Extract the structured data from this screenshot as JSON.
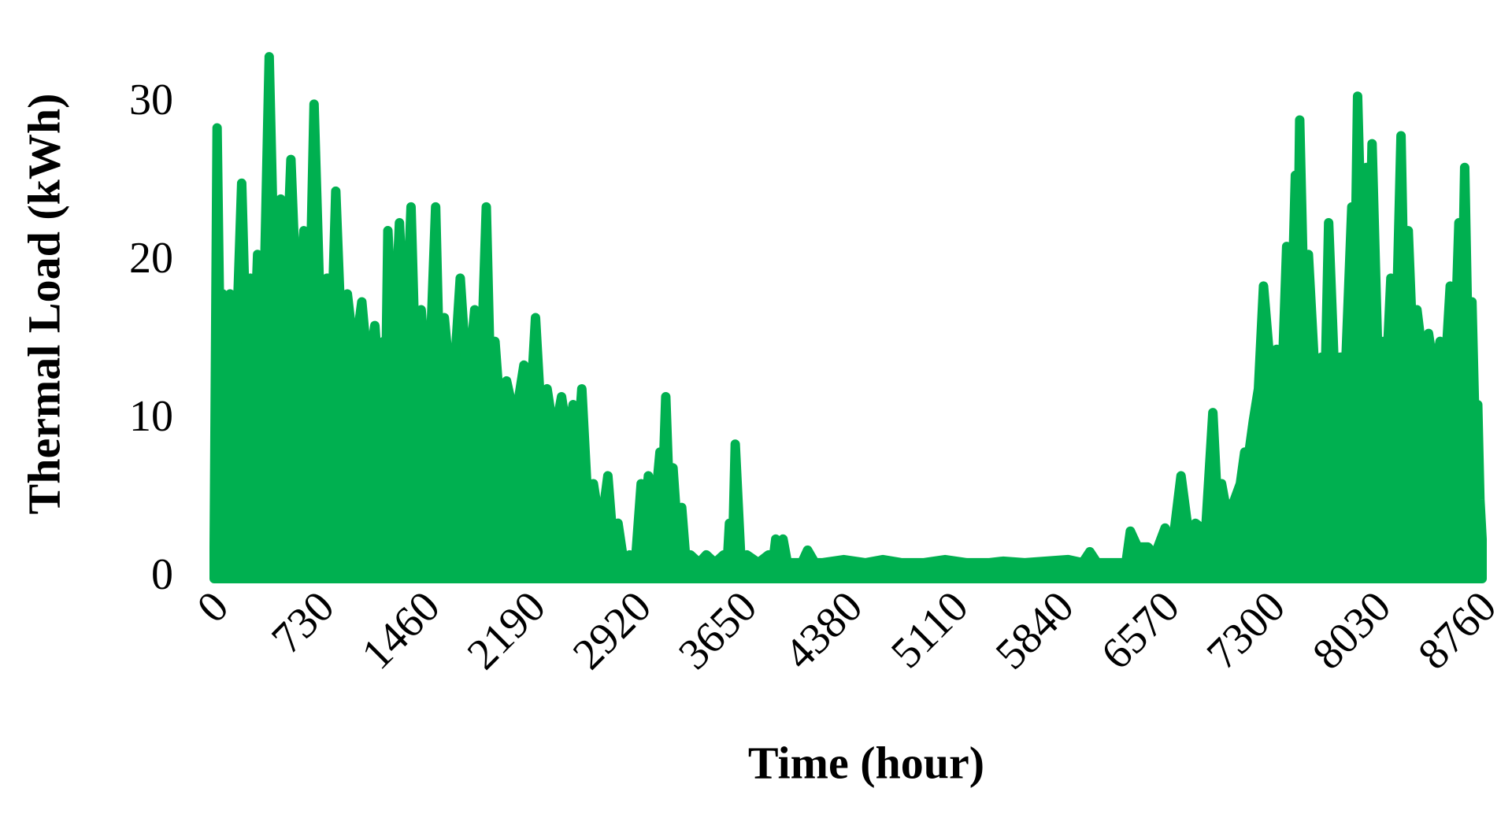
{
  "chart_data": {
    "type": "area",
    "xlabel": "Time (hour)",
    "ylabel": "Thermal Load (kWh)",
    "color": "#00b050",
    "xlim": [
      0,
      8760
    ],
    "xticks": [
      0,
      730,
      1460,
      2190,
      2920,
      3650,
      4380,
      5110,
      5840,
      6570,
      7300,
      8030,
      8760
    ],
    "ylim": [
      0,
      34
    ],
    "yticks": [
      0,
      10,
      20,
      30
    ],
    "grid": false,
    "x": [
      0,
      20,
      40,
      60,
      85,
      110,
      150,
      190,
      220,
      250,
      275,
      300,
      340,
      380,
      420,
      460,
      495,
      530,
      575,
      620,
      655,
      690,
      735,
      780,
      810,
      840,
      880,
      920,
      970,
      1020,
      1065,
      1110,
      1140,
      1170,
      1185,
      1200,
      1240,
      1280,
      1320,
      1360,
      1395,
      1430,
      1480,
      1530,
      1560,
      1590,
      1645,
      1700,
      1750,
      1800,
      1840,
      1880,
      1910,
      1940,
      1980,
      2020,
      2080,
      2140,
      2180,
      2220,
      2260,
      2300,
      2350,
      2400,
      2440,
      2480,
      2510,
      2540,
      2580,
      2620,
      2670,
      2720,
      2750,
      2790,
      2830,
      2870,
      2910,
      2950,
      2975,
      3000,
      3040,
      3080,
      3100,
      3120,
      3145,
      3170,
      3200,
      3230,
      3260,
      3290,
      3350,
      3400,
      3460,
      3520,
      3545,
      3560,
      3580,
      3600,
      3640,
      3680,
      3760,
      3830,
      3860,
      3880,
      3905,
      3930,
      3960,
      4000,
      4060,
      4100,
      4150,
      4200,
      4350,
      4500,
      4620,
      4750,
      4900,
      5050,
      5200,
      5350,
      5450,
      5600,
      5750,
      5900,
      6000,
      6050,
      6100,
      6200,
      6300,
      6330,
      6380,
      6450,
      6500,
      6570,
      6620,
      6680,
      6730,
      6780,
      6850,
      6900,
      6930,
      6960,
      7000,
      7050,
      7090,
      7120,
      7150,
      7180,
      7215,
      7250,
      7300,
      7340,
      7380,
      7410,
      7440,
      7470,
      7485,
      7500,
      7530,
      7560,
      7610,
      7650,
      7675,
      7700,
      7740,
      7780,
      7820,
      7860,
      7880,
      7900,
      7930,
      7960,
      7980,
      8000,
      8040,
      8080,
      8105,
      8130,
      8165,
      8200,
      8225,
      8250,
      8280,
      8310,
      8350,
      8390,
      8430,
      8470,
      8505,
      8540,
      8570,
      8600,
      8620,
      8640,
      8665,
      8690,
      8710,
      8730,
      8745,
      8760
    ],
    "values": [
      2,
      28.5,
      15,
      18,
      12,
      18,
      14,
      25,
      15,
      19,
      14,
      20.5,
      16,
      33,
      17,
      24,
      18,
      26.5,
      16,
      22,
      15,
      30,
      16,
      19,
      15,
      24.5,
      15,
      18,
      14,
      17.5,
      13,
      16,
      12,
      15,
      12,
      22,
      14,
      22.5,
      14,
      23.5,
      12,
      17,
      11,
      23.5,
      12,
      16.5,
      11,
      19,
      12,
      17,
      12,
      23.5,
      12,
      15,
      10,
      12.5,
      10,
      13.5,
      10,
      16.5,
      10,
      12,
      9,
      11.5,
      9,
      11,
      8,
      12,
      5,
      6,
      3,
      6.5,
      3,
      3.5,
      1,
      1.5,
      1,
      6,
      4,
      6.5,
      4,
      8,
      6,
      11.5,
      5,
      7,
      3,
      4.5,
      1,
      1.5,
      1,
      1.5,
      1,
      1.5,
      1,
      3.5,
      1,
      8.5,
      1,
      1.5,
      1,
      1.5,
      1,
      2.5,
      1,
      2.5,
      1,
      1,
      1,
      1.8,
      1,
      1,
      1.2,
      1,
      1.2,
      1,
      1,
      1.2,
      1,
      1,
      1.1,
      1,
      1.1,
      1.2,
      1,
      1.7,
      1,
      1,
      1,
      3,
      2,
      2,
      1.5,
      3.2,
      2,
      6.5,
      3,
      3.5,
      3,
      10.5,
      5,
      6,
      4,
      5,
      6,
      8,
      8,
      10,
      12,
      18.5,
      13,
      14.5,
      13,
      21,
      15,
      25.5,
      18,
      29,
      17,
      20.5,
      12,
      14,
      12,
      22.5,
      13,
      14,
      14,
      23.5,
      18,
      30.5,
      20,
      26,
      18,
      27.5,
      14,
      15,
      14,
      19,
      15,
      28,
      16,
      22,
      15,
      17,
      14,
      15.5,
      13,
      15,
      13,
      18.5,
      14,
      22.5,
      16,
      26,
      14,
      17.5,
      10,
      11,
      5,
      2.5
    ]
  }
}
